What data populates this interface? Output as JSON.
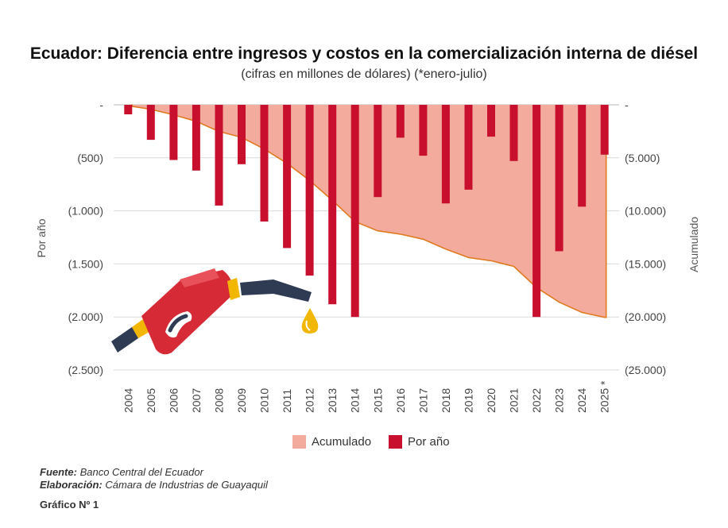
{
  "title": "Ecuador: Diferencia entre ingresos y costos en la comercialización interna de diésel",
  "subtitle": "(cifras en millones de dólares) (*enero-julio)",
  "legend": {
    "accumulated": "Acumulado",
    "per_year": "Por año"
  },
  "footer": {
    "source_label": "Fuente:",
    "source_text": "Banco Central del Ecuador",
    "elab_label": "Elaboración:",
    "elab_text": "Cámara de Industrias de Guayaquil",
    "figure": "Gráfico Nº 1"
  },
  "colors": {
    "bar": "#c8102e",
    "area": "#f2ab9d",
    "area_line": "#e07a20",
    "grid": "#d9d9d9"
  },
  "chart_data": {
    "type": "bar",
    "title": "Ecuador: Diferencia entre ingresos y costos en la comercialización interna de diésel",
    "categories": [
      "2004",
      "2005",
      "2006",
      "2007",
      "2008",
      "2009",
      "2010",
      "2011",
      "2012",
      "2013",
      "2014",
      "2015",
      "2016",
      "2017",
      "2018",
      "2019",
      "2020",
      "2021",
      "2022",
      "2023",
      "2024",
      "2025 *"
    ],
    "series": [
      {
        "name": "Por año",
        "type": "bar",
        "axis": "left",
        "values": [
          -90,
          -330,
          -520,
          -620,
          -950,
          -560,
          -1100,
          -1350,
          -1610,
          -1880,
          -2000,
          -870,
          -310,
          -480,
          -930,
          -800,
          -300,
          -530,
          -2000,
          -1380,
          -960,
          -470
        ]
      },
      {
        "name": "Acumulado",
        "type": "area",
        "axis": "right",
        "values": [
          -90,
          -420,
          -940,
          -1560,
          -2510,
          -3070,
          -4170,
          -5520,
          -7130,
          -9010,
          -11010,
          -11880,
          -12190,
          -12670,
          -13600,
          -14400,
          -14700,
          -15230,
          -17230,
          -18610,
          -19570,
          -20040
        ]
      }
    ],
    "ylabel_left": "Por año",
    "ylabel_right": "Acumulado",
    "ylim_left": [
      -2500,
      0
    ],
    "ylim_right": [
      -25000,
      0
    ],
    "left_ticks": [
      {
        "value": 0,
        "label": "-"
      },
      {
        "value": -500,
        "label": "(500)"
      },
      {
        "value": -1000,
        "label": "(1.000)"
      },
      {
        "value": -1500,
        "label": "(1.500)"
      },
      {
        "value": -2000,
        "label": "(2.000)"
      },
      {
        "value": -2500,
        "label": "(2.500)"
      }
    ],
    "right_ticks": [
      {
        "value": 0,
        "label": "-"
      },
      {
        "value": -5000,
        "label": "(5.000)"
      },
      {
        "value": -10000,
        "label": "(10.000)"
      },
      {
        "value": -15000,
        "label": "(15.000)"
      },
      {
        "value": -20000,
        "label": "(20.000)"
      },
      {
        "value": -25000,
        "label": "(25.000)"
      }
    ],
    "grid": true,
    "legend_position": "bottom"
  }
}
